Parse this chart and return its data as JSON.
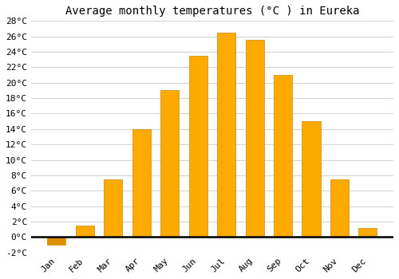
{
  "title": "Average monthly temperatures (°C ) in Eureka",
  "months": [
    "Jan",
    "Feb",
    "Mar",
    "Apr",
    "May",
    "Jun",
    "Jul",
    "Aug",
    "Sep",
    "Oct",
    "Nov",
    "Dec"
  ],
  "temperatures": [
    -1.0,
    1.5,
    7.5,
    14.0,
    19.0,
    23.5,
    26.5,
    25.5,
    21.0,
    15.0,
    7.5,
    1.2
  ],
  "bar_color": "#FFAA00",
  "bar_color_neg": "#E09000",
  "bar_edge_color": "#CC8800",
  "ylim": [
    -2,
    28
  ],
  "yticks": [
    -2,
    0,
    2,
    4,
    6,
    8,
    10,
    12,
    14,
    16,
    18,
    20,
    22,
    24,
    26,
    28
  ],
  "background_color": "#FFFFFF",
  "grid_color": "#CCCCCC",
  "title_fontsize": 10,
  "tick_fontsize": 8,
  "font_family": "monospace"
}
